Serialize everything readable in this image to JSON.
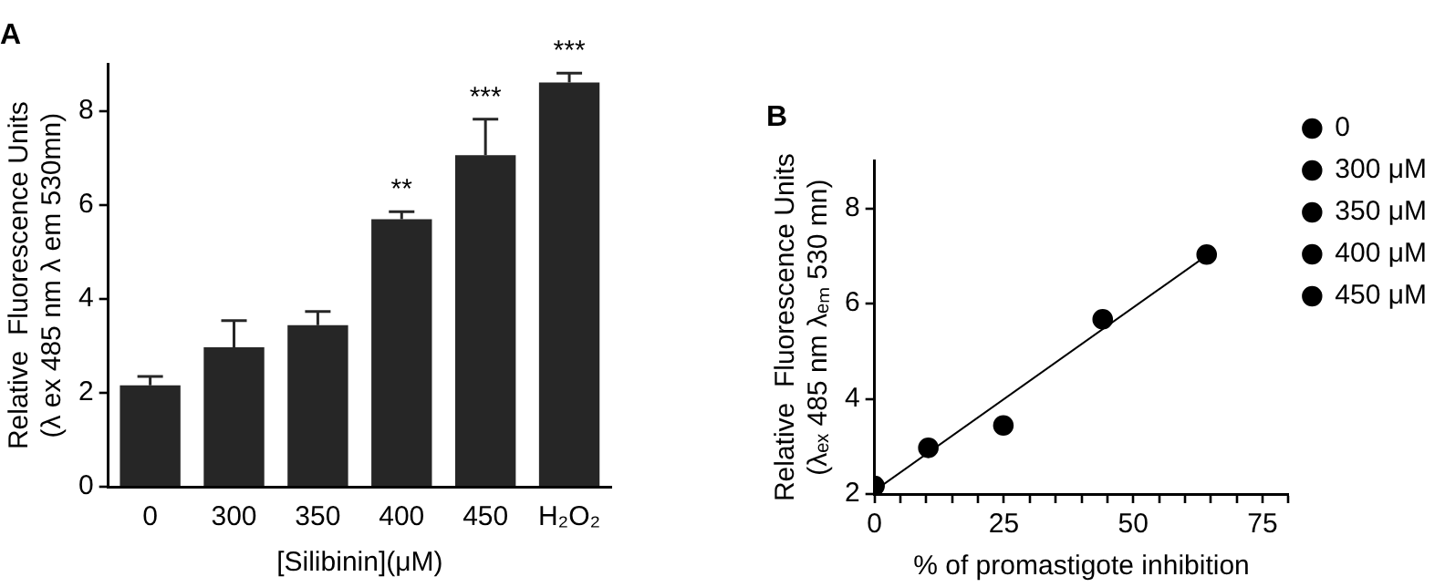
{
  "chart_data": [
    {
      "type": "bar",
      "title": "A",
      "xlabel": "[Silibinin](μM)",
      "ylabel": "Relative  Fluorescence Units (λ ex 485 nm λ em 530mn)",
      "categories": [
        "0",
        "300",
        "350",
        "400",
        "450",
        "H₂O₂"
      ],
      "values": [
        2.16,
        2.97,
        3.44,
        5.7,
        7.06,
        8.61
      ],
      "color": "#262626",
      "errors": [
        [
          2.16,
          2.35
        ],
        [
          2.97,
          3.54
        ],
        [
          3.44,
          3.73
        ],
        [
          5.7,
          5.86
        ],
        [
          7.06,
          7.83
        ],
        [
          8.61,
          8.81
        ]
      ],
      "ylim": [
        0,
        9
      ],
      "yticks": [
        0,
        2,
        4,
        6,
        8
      ],
      "grid": false,
      "legend": false,
      "annotations": [
        {
          "text": "**",
          "x": "400",
          "y": 5.86
        },
        {
          "text": "***",
          "x": "450",
          "y": 7.83
        },
        {
          "text": "***",
          "x": "H₂O₂",
          "y": 8.81
        }
      ]
    },
    {
      "type": "scatter",
      "title": "B",
      "xlabel": "% of promastigote inhibition",
      "ylabel": "Relative  Fluorescence Units (λₑₓ 485 nm λₑₘ 530 mn)",
      "series": [
        {
          "name": "0",
          "color": "#000000",
          "x": [
            0
          ],
          "values": [
            2.17
          ]
        },
        {
          "name": "300 μM",
          "color": "#000000",
          "x": [
            10.4
          ],
          "values": [
            2.97
          ]
        },
        {
          "name": "350 μM",
          "color": "#000000",
          "x": [
            24.9
          ],
          "values": [
            3.44
          ]
        },
        {
          "name": "400 μM",
          "color": "#000000",
          "x": [
            44.1
          ],
          "values": [
            5.67
          ]
        },
        {
          "name": "450 μM",
          "color": "#000000",
          "x": [
            64.2
          ],
          "values": [
            7.03
          ]
        },
        {
          "type": "line",
          "color": "#000000",
          "x": [
            0,
            65.5
          ],
          "values": [
            2.07,
            7.11
          ],
          "marker": "none"
        }
      ],
      "marker": "circle",
      "xlim": [
        0,
        80
      ],
      "xticks": [
        0,
        {
          "value": 5,
          "label": null
        },
        {
          "value": 10,
          "label": null
        },
        {
          "value": 15,
          "label": null
        },
        {
          "value": 20,
          "label": null
        },
        25,
        {
          "value": 30,
          "label": null
        },
        {
          "value": 35,
          "label": null
        },
        {
          "value": 40,
          "label": null
        },
        {
          "value": 45,
          "label": null
        },
        50,
        {
          "value": 55,
          "label": null
        },
        {
          "value": 60,
          "label": null
        },
        {
          "value": 65,
          "label": null
        },
        {
          "value": 70,
          "label": null
        },
        75,
        {
          "value": 80,
          "label": null
        }
      ],
      "ylim": [
        2,
        9
      ],
      "yticks": [
        2,
        4,
        6,
        8
      ],
      "grid": false,
      "legend": "right"
    }
  ]
}
